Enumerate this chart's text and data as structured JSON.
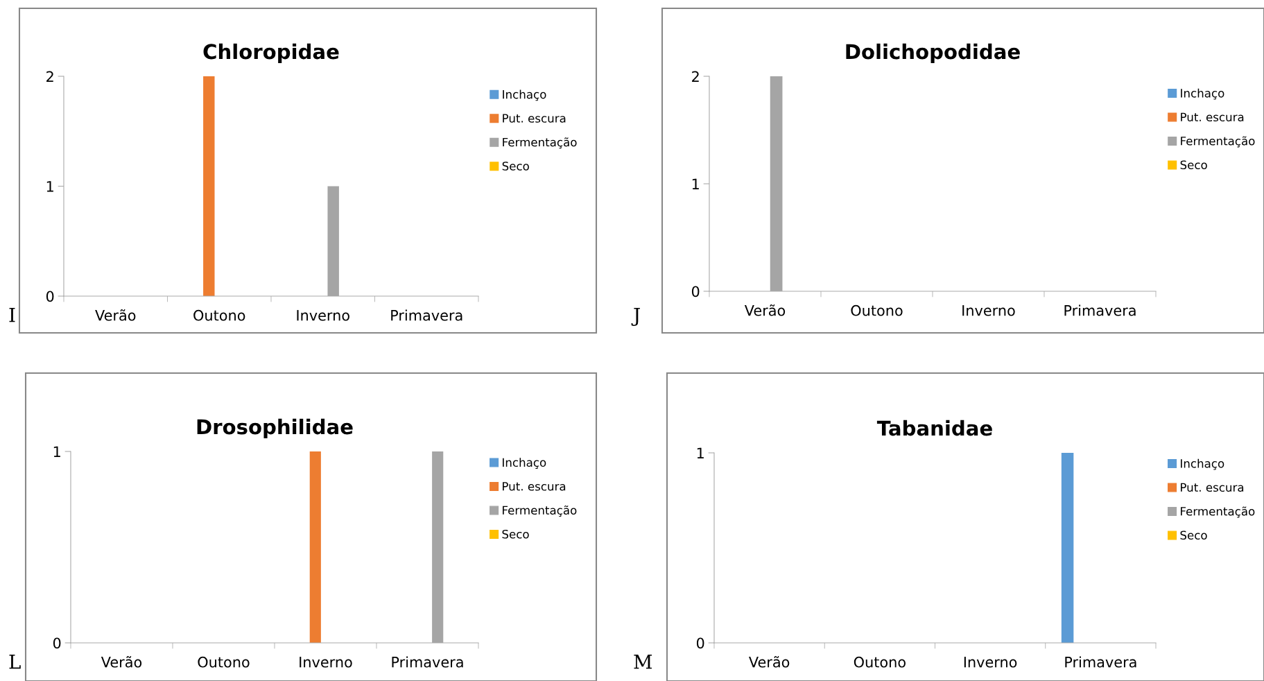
{
  "chart_data": [
    {
      "type": "bar",
      "title": "Chloropidae",
      "categories": [
        "Verão",
        "Outono",
        "Inverno",
        "Primavera"
      ],
      "ylim": [
        0,
        2
      ],
      "yticks": [
        0,
        1,
        2
      ],
      "grid": false,
      "legend": "right",
      "annotations": [
        "I"
      ],
      "series": [
        {
          "name": "Inchaço",
          "color": "#5b9bd5",
          "values": [
            0,
            0,
            0,
            0
          ]
        },
        {
          "name": "Put. escura",
          "color": "#ed7d31",
          "values": [
            0,
            2,
            0,
            0
          ]
        },
        {
          "name": "Fermentação",
          "color": "#a5a5a5",
          "values": [
            0,
            0,
            1,
            0
          ]
        },
        {
          "name": "Seco",
          "color": "#ffc000",
          "values": [
            0,
            0,
            0,
            0
          ]
        }
      ]
    },
    {
      "type": "bar",
      "title": "Dolichopodidae",
      "categories": [
        "Verão",
        "Outono",
        "Inverno",
        "Primavera"
      ],
      "ylim": [
        0,
        2
      ],
      "yticks": [
        0,
        1,
        2
      ],
      "grid": false,
      "legend": "right",
      "annotations": [
        "J"
      ],
      "series": [
        {
          "name": "Inchaço",
          "color": "#5b9bd5",
          "values": [
            0,
            0,
            0,
            0
          ]
        },
        {
          "name": "Put. escura",
          "color": "#ed7d31",
          "values": [
            0,
            0,
            0,
            0
          ]
        },
        {
          "name": "Fermentação",
          "color": "#a5a5a5",
          "values": [
            2,
            0,
            0,
            0
          ]
        },
        {
          "name": "Seco",
          "color": "#ffc000",
          "values": [
            0,
            0,
            0,
            0
          ]
        }
      ]
    },
    {
      "type": "bar",
      "title": "Drosophilidae",
      "categories": [
        "Verão",
        "Outono",
        "Inverno",
        "Primavera"
      ],
      "ylim": [
        0,
        1
      ],
      "yticks": [
        0,
        1
      ],
      "grid": false,
      "legend": "right",
      "annotations": [
        "L"
      ],
      "series": [
        {
          "name": "Inchaço",
          "color": "#5b9bd5",
          "values": [
            0,
            0,
            0,
            0
          ]
        },
        {
          "name": "Put. escura",
          "color": "#ed7d31",
          "values": [
            0,
            0,
            1,
            0
          ]
        },
        {
          "name": "Fermentação",
          "color": "#a5a5a5",
          "values": [
            0,
            0,
            0,
            1
          ]
        },
        {
          "name": "Seco",
          "color": "#ffc000",
          "values": [
            0,
            0,
            0,
            0
          ]
        }
      ]
    },
    {
      "type": "bar",
      "title": "Tabanidae",
      "categories": [
        "Verão",
        "Outono",
        "Inverno",
        "Primavera"
      ],
      "ylim": [
        0,
        1
      ],
      "yticks": [
        0,
        1
      ],
      "grid": false,
      "legend": "right",
      "annotations": [
        "M"
      ],
      "series": [
        {
          "name": "Inchaço",
          "color": "#5b9bd5",
          "values": [
            0,
            0,
            0,
            1
          ]
        },
        {
          "name": "Put. escura",
          "color": "#ed7d31",
          "values": [
            0,
            0,
            0,
            0
          ]
        },
        {
          "name": "Fermentação",
          "color": "#a5a5a5",
          "values": [
            0,
            0,
            0,
            0
          ]
        },
        {
          "name": "Seco",
          "color": "#ffc000",
          "values": [
            0,
            0,
            0,
            0
          ]
        }
      ]
    }
  ]
}
